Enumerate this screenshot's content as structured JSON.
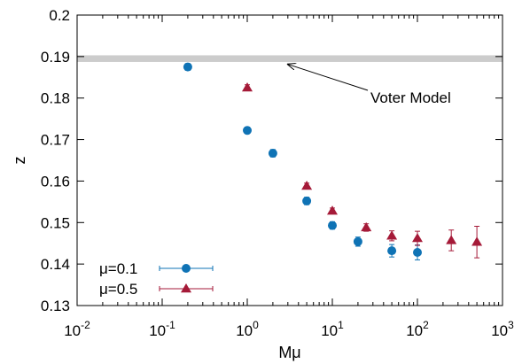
{
  "chart_data": {
    "type": "scatter",
    "xscale": "log",
    "xlim": [
      0.01,
      1000
    ],
    "ylim": [
      0.13,
      0.2
    ],
    "xlabel": "Mμ",
    "ylabel": "z",
    "x_ticks": [
      0.01,
      0.1,
      1,
      10,
      100,
      1000
    ],
    "x_tick_labels": [
      {
        "base": "10",
        "exp": "-2"
      },
      {
        "base": "10",
        "exp": "-1"
      },
      {
        "base": "10",
        "exp": "0"
      },
      {
        "base": "10",
        "exp": "1"
      },
      {
        "base": "10",
        "exp": "2"
      },
      {
        "base": "10",
        "exp": "3"
      }
    ],
    "y_ticks": [
      0.13,
      0.14,
      0.15,
      0.16,
      0.17,
      0.18,
      0.19,
      0.2
    ],
    "y_tick_labels": [
      "0.13",
      "0.14",
      "0.15",
      "0.16",
      "0.17",
      "0.18",
      "0.19",
      "0.2"
    ],
    "legend_position": "bottom-left",
    "band": {
      "ymin": 0.1887,
      "ymax": 0.1903,
      "color": "#cccccc"
    },
    "annotation": {
      "text": "Voter Model",
      "arrow_target_x": 3,
      "arrow_target_y": 0.189
    },
    "series": [
      {
        "name": "μ=0.1",
        "marker": "circle",
        "color": "#0f73b5",
        "points": [
          {
            "x": 0.2,
            "y": 0.1875,
            "err": 0.0008
          },
          {
            "x": 1,
            "y": 0.1722,
            "err": 0.0008
          },
          {
            "x": 2,
            "y": 0.1667,
            "err": 0.0009
          },
          {
            "x": 5,
            "y": 0.1552,
            "err": 0.0009
          },
          {
            "x": 10,
            "y": 0.1493,
            "err": 0.0009
          },
          {
            "x": 20,
            "y": 0.1454,
            "err": 0.0011
          },
          {
            "x": 50,
            "y": 0.1432,
            "err": 0.0015
          },
          {
            "x": 100,
            "y": 0.1428,
            "err": 0.0018
          }
        ]
      },
      {
        "name": "μ=0.5",
        "marker": "triangle",
        "color": "#a51a38",
        "points": [
          {
            "x": 1,
            "y": 0.1825,
            "err": 0.0007
          },
          {
            "x": 5,
            "y": 0.1588,
            "err": 0.0007
          },
          {
            "x": 10,
            "y": 0.1528,
            "err": 0.0007
          },
          {
            "x": 25,
            "y": 0.1488,
            "err": 0.0009
          },
          {
            "x": 50,
            "y": 0.1468,
            "err": 0.0012
          },
          {
            "x": 100,
            "y": 0.1462,
            "err": 0.0017
          },
          {
            "x": 250,
            "y": 0.1457,
            "err": 0.0025
          },
          {
            "x": 500,
            "y": 0.1453,
            "err": 0.0038
          }
        ]
      }
    ]
  }
}
